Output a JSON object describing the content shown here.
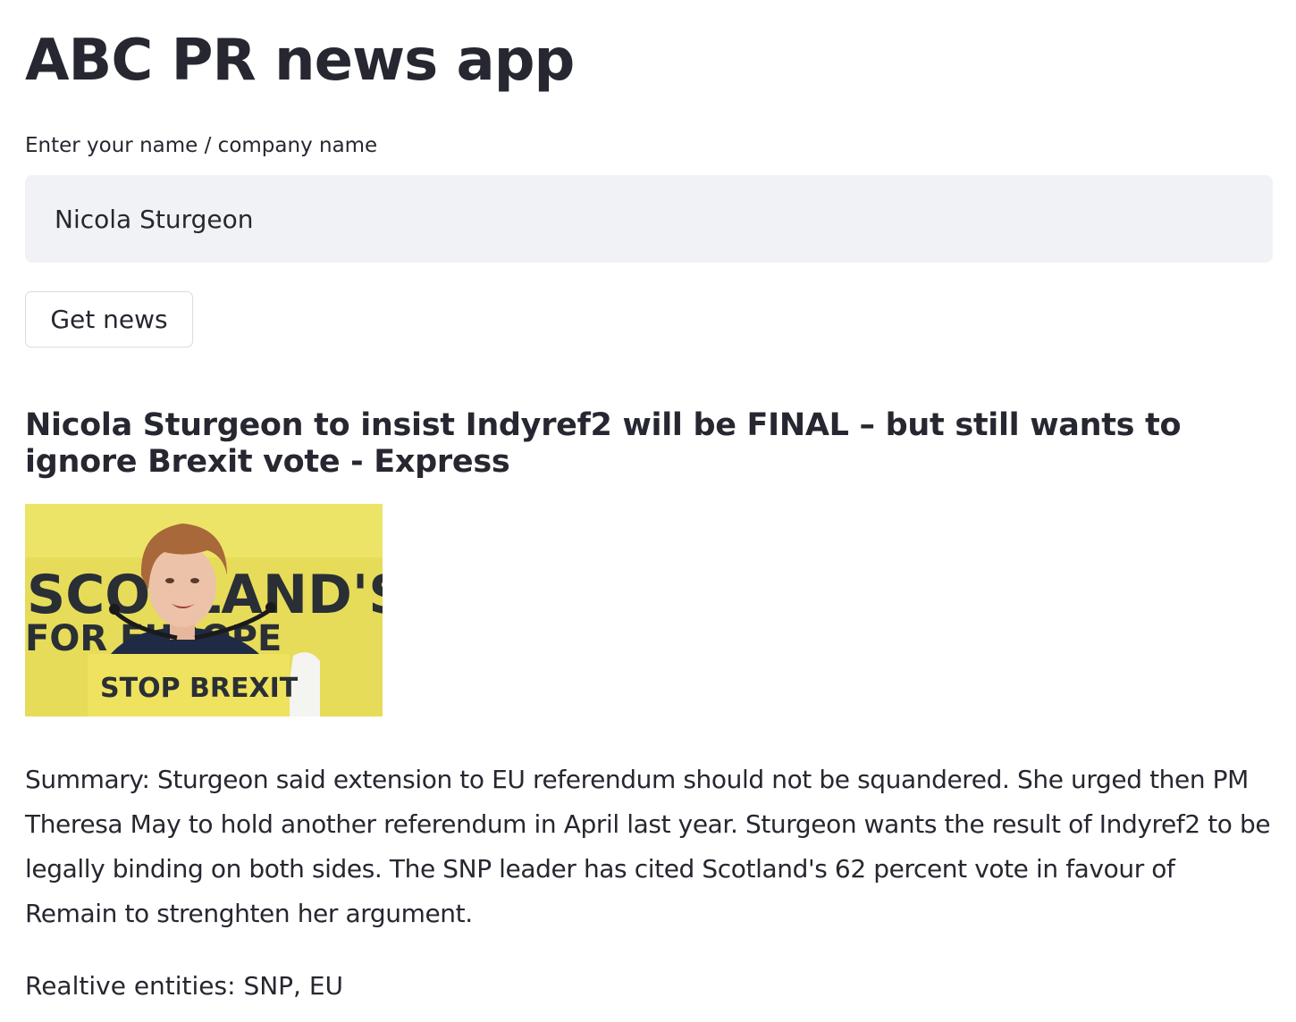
{
  "app": {
    "title": "ABC PR news app"
  },
  "form": {
    "label": "Enter your name / company name",
    "value": "Nicola Sturgeon",
    "button_label": "Get news"
  },
  "article": {
    "headline": "Nicola Sturgeon to insist Indyref2 will be FINAL – but still wants to ignore Brexit vote - Express",
    "image_text": {
      "backdrop_line1": "SCOTLAND'S",
      "backdrop_line2": "FOR EUROPE",
      "podium_sign": "STOP BREXIT"
    },
    "summary": "Summary: Sturgeon said extension to EU referendum should not be squandered. She urged then PM Theresa May to hold another referendum in April last year. Sturgeon wants the result of Indyref2 to be legally binding on both sides. The SNP leader has cited Scotland's 62 percent vote in favour of Remain to strenghten her argument.",
    "entities": "Realtive entities: SNP, EU"
  },
  "colors": {
    "text": "#262730",
    "input_bg": "#f0f2f6",
    "button_border": "#d9dbe1",
    "image_yellow": "#e6dc5a"
  }
}
